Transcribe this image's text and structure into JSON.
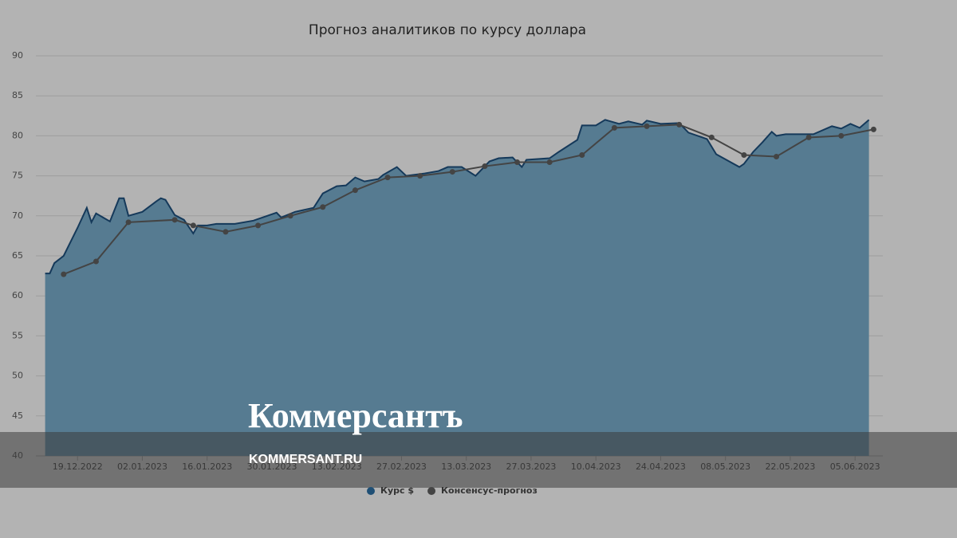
{
  "chart_data": {
    "type": "area-line",
    "title": "Прогноз аналитиков по курсу доллара",
    "xlim": [
      "2022-12-10",
      "2023-06-11"
    ],
    "xticks": [
      {
        "value": "2022-12-19",
        "label": "19.12.2022"
      },
      {
        "value": "2023-01-02",
        "label": "02.01.2023"
      },
      {
        "value": "2023-01-16",
        "label": "16.01.2023"
      },
      {
        "value": "2023-01-30",
        "label": "30.01.2023"
      },
      {
        "value": "2023-02-13",
        "label": "13.02.2023"
      },
      {
        "value": "2023-02-27",
        "label": "27.02.2023"
      },
      {
        "value": "2023-03-13",
        "label": "13.03.2023"
      },
      {
        "value": "2023-03-27",
        "label": "27.03.2023"
      },
      {
        "value": "2023-04-10",
        "label": "10.04.2023"
      },
      {
        "value": "2023-04-24",
        "label": "24.04.2023"
      },
      {
        "value": "2023-05-08",
        "label": "08.05.2023"
      },
      {
        "value": "2023-05-22",
        "label": "22.05.2023"
      },
      {
        "value": "2023-06-05",
        "label": "05.06.2023"
      }
    ],
    "ylim": [
      40,
      90
    ],
    "yticks": [
      40,
      45,
      50,
      55,
      60,
      65,
      70,
      75,
      80,
      85,
      90
    ],
    "grid": true,
    "legend": "bottom",
    "series": [
      {
        "name": "Курс $",
        "kind": "area",
        "color": "#15395a",
        "fill": "#567b91",
        "x": [
          "2022-12-12",
          "2022-12-13",
          "2022-12-14",
          "2022-12-16",
          "2022-12-19",
          "2022-12-21",
          "2022-12-22",
          "2022-12-23",
          "2022-12-26",
          "2022-12-28",
          "2022-12-29",
          "2022-12-30",
          "2023-01-02",
          "2023-01-05",
          "2023-01-06",
          "2023-01-07",
          "2023-01-09",
          "2023-01-11",
          "2023-01-13",
          "2023-01-14",
          "2023-01-16",
          "2023-01-18",
          "2023-01-22",
          "2023-01-26",
          "2023-01-31",
          "2023-02-01",
          "2023-02-04",
          "2023-02-08",
          "2023-02-10",
          "2023-02-13",
          "2023-02-15",
          "2023-02-17",
          "2023-02-19",
          "2023-02-22",
          "2023-02-23",
          "2023-02-26",
          "2023-02-28",
          "2023-03-04",
          "2023-03-07",
          "2023-03-09",
          "2023-03-12",
          "2023-03-15",
          "2023-03-18",
          "2023-03-20",
          "2023-03-23",
          "2023-03-25",
          "2023-03-26",
          "2023-03-31",
          "2023-04-02",
          "2023-04-06",
          "2023-04-07",
          "2023-04-10",
          "2023-04-12",
          "2023-04-15",
          "2023-04-17",
          "2023-04-20",
          "2023-04-21",
          "2023-04-24",
          "2023-04-28",
          "2023-04-30",
          "2023-05-04",
          "2023-05-06",
          "2023-05-11",
          "2023-05-12",
          "2023-05-14",
          "2023-05-16",
          "2023-05-18",
          "2023-05-19",
          "2023-05-21",
          "2023-05-27",
          "2023-05-31",
          "2023-06-02",
          "2023-06-04",
          "2023-06-06",
          "2023-06-08"
        ],
        "values": [
          62.8,
          62.8,
          64.1,
          65.0,
          68.5,
          71.0,
          69.2,
          70.3,
          69.3,
          72.2,
          72.2,
          70.0,
          70.5,
          71.8,
          72.2,
          72.0,
          70.1,
          69.5,
          67.8,
          68.8,
          68.8,
          69.0,
          69.0,
          69.4,
          70.4,
          69.8,
          70.5,
          71.0,
          72.8,
          73.7,
          73.8,
          74.8,
          74.3,
          74.6,
          75.1,
          76.1,
          75.0,
          75.3,
          75.6,
          76.1,
          76.1,
          75.0,
          76.8,
          77.2,
          77.3,
          76.1,
          77.0,
          77.2,
          78.0,
          79.5,
          81.3,
          81.3,
          82.0,
          81.5,
          81.8,
          81.4,
          81.9,
          81.5,
          81.6,
          80.4,
          79.6,
          77.7,
          76.1,
          76.5,
          78.0,
          79.2,
          80.5,
          80.0,
          80.2,
          80.2,
          81.2,
          80.9,
          81.5,
          81.0,
          82.0
        ]
      },
      {
        "name": "Консенсус-прогноз",
        "kind": "line",
        "color": "#444444",
        "x": [
          "2022-12-16",
          "2022-12-23",
          "2022-12-30",
          "2023-01-09",
          "2023-01-13",
          "2023-01-20",
          "2023-01-27",
          "2023-02-03",
          "2023-02-10",
          "2023-02-17",
          "2023-02-24",
          "2023-03-03",
          "2023-03-10",
          "2023-03-17",
          "2023-03-24",
          "2023-03-31",
          "2023-04-07",
          "2023-04-14",
          "2023-04-21",
          "2023-04-28",
          "2023-05-05",
          "2023-05-12",
          "2023-05-19",
          "2023-05-26",
          "2023-06-02",
          "2023-06-09"
        ],
        "values": [
          62.7,
          64.3,
          69.2,
          69.5,
          68.8,
          68.0,
          68.8,
          70.0,
          71.1,
          73.2,
          74.8,
          75.0,
          75.5,
          76.2,
          76.7,
          76.7,
          77.6,
          81.0,
          81.2,
          81.4,
          79.8,
          77.6,
          77.4,
          79.8,
          80.0,
          80.8
        ]
      }
    ]
  },
  "watermark": {
    "logo": "Коммерсантъ",
    "url": "KOMMERSANT.RU"
  }
}
